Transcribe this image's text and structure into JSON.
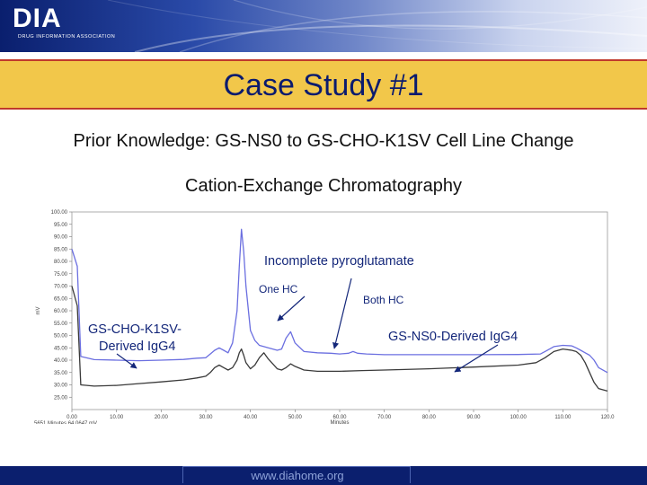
{
  "header": {
    "logo_text": "DIA",
    "logo_subtitle": "DRUG INFORMATION ASSOCIATION"
  },
  "slide": {
    "title": "Case Study #1",
    "subtitle": "Prior Knowledge: GS-NS0 to GS-CHO-K1SV Cell Line Change",
    "footer_url": "www.diahome.org"
  },
  "chart_data": {
    "type": "line",
    "title": "Cation-Exchange Chromatography",
    "xlabel": "Minutes",
    "ylabel": "mV",
    "xlim": [
      0,
      120
    ],
    "ylim": [
      20,
      100
    ],
    "x_ticks": [
      "0.00",
      "10.00",
      "20.00",
      "30.00",
      "40.00",
      "50.00",
      "60.00",
      "70.00",
      "80.00",
      "90.00",
      "100.00",
      "110.00",
      "120.0"
    ],
    "y_ticks": [
      "100.00",
      "95.00",
      "90.00",
      "85.00",
      "80.00",
      "75.00",
      "70.00",
      "65.00",
      "60.00",
      "55.00",
      "50.00",
      "45.00",
      "40.00",
      "35.00",
      "30.00",
      "25.00"
    ],
    "readout": "5651 Minutes   64.0647 mV",
    "colors": {
      "series_a": "#6b6fe0",
      "series_b": "#3a3a3a",
      "annotation": "#14277a"
    },
    "series": [
      {
        "name": "GS-CHO-K1SV-Derived IgG4",
        "x": [
          0,
          1.2,
          2,
          5,
          10,
          15,
          20,
          25,
          28,
          30,
          31,
          32,
          33,
          34,
          35,
          36,
          37,
          37.5,
          38,
          38.5,
          39,
          40,
          41,
          42,
          43,
          44,
          45,
          46,
          47,
          48,
          49,
          50,
          52,
          55,
          58,
          60,
          62,
          63,
          64,
          66,
          70,
          80,
          90,
          100,
          105,
          106,
          108,
          110,
          112,
          113,
          114,
          115,
          116,
          117,
          118,
          120
        ],
        "y": [
          85,
          78,
          41.5,
          40.2,
          40.0,
          39.8,
          40.0,
          40.3,
          40.8,
          41.0,
          42.5,
          44,
          45,
          44,
          43,
          47,
          60,
          78,
          93,
          84,
          70,
          52,
          48,
          46,
          45.5,
          45,
          44.5,
          44,
          44.5,
          49,
          51.5,
          47,
          43.5,
          43.0,
          42.8,
          42.5,
          42.8,
          43.5,
          42.8,
          42.5,
          42.2,
          42.2,
          42.2,
          42.3,
          42.5,
          43.5,
          45.5,
          46,
          45.8,
          45,
          44,
          43,
          42,
          40,
          37,
          35
        ]
      },
      {
        "name": "GS-NS0-Derived IgG4",
        "x": [
          0,
          1.2,
          2,
          5,
          10,
          15,
          20,
          25,
          28,
          30,
          31,
          32,
          33,
          34,
          35,
          36,
          37,
          37.5,
          38,
          38.5,
          39,
          40,
          41,
          42,
          43,
          44,
          45,
          46,
          47,
          48,
          49,
          50,
          52,
          55,
          60,
          65,
          70,
          80,
          90,
          100,
          104,
          106,
          108,
          110,
          112,
          113,
          114,
          115,
          116,
          117,
          118,
          120
        ],
        "y": [
          70,
          62,
          30,
          29.5,
          29.8,
          30.5,
          31.2,
          32,
          32.8,
          33.5,
          35,
          37,
          38,
          37,
          36,
          37,
          40,
          43,
          44.5,
          42,
          39,
          36.5,
          38,
          41,
          43,
          40.5,
          38.5,
          36.5,
          36,
          37,
          38.5,
          37.5,
          36,
          35.5,
          35.5,
          35.8,
          36,
          36.5,
          37.2,
          38,
          39,
          41,
          43.5,
          44.5,
          44,
          43.5,
          42,
          39,
          35,
          31,
          28.5,
          27.5
        ]
      }
    ],
    "annotations": [
      {
        "text": "Incomplete pyroglutamate"
      },
      {
        "text": "One HC"
      },
      {
        "text": "Both HC"
      },
      {
        "text": "GS-CHO-K1SV-"
      },
      {
        "text": "Derived IgG4"
      },
      {
        "text": "GS-NS0-Derived IgG4"
      }
    ]
  }
}
